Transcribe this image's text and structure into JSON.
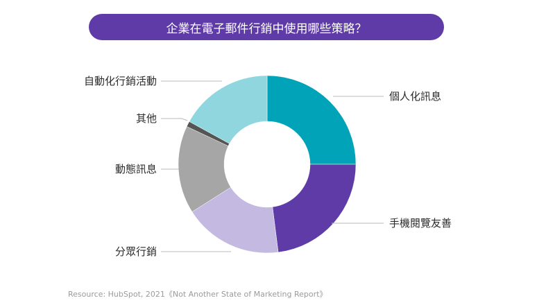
{
  "colors": {
    "title_bg": "#5E3BA6",
    "leader_line": "#b9b9b9",
    "label_text": "#2b2b2b",
    "source_text": "#9a9a9a"
  },
  "title": "企業在電子郵件行銷中使用哪些策略？",
  "source": "Resource: HubSpot, 2021《Not Another State of Marketing Report》",
  "chart_data": {
    "type": "pie",
    "donut": true,
    "title": "企業在電子郵件行銷中使用哪些策略？",
    "unit": "%",
    "start": "12 o'clock, clockwise",
    "slices": [
      {
        "label": "個人化訊息",
        "value": 25,
        "color": "#00A3B7"
      },
      {
        "label": "手機閱覽友善",
        "value": 23,
        "color": "#5E3BA6"
      },
      {
        "label": "分眾行銷",
        "value": 18,
        "color": "#C4B9E0"
      },
      {
        "label": "動態訊息",
        "value": 16,
        "color": "#A6A6A6"
      },
      {
        "label": "其他",
        "value": 1,
        "color": "#555555"
      },
      {
        "label": "自動化行銷活動",
        "value": 17,
        "color": "#8FD6DF"
      }
    ]
  }
}
